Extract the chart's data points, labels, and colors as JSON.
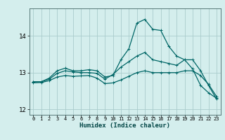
{
  "title": "",
  "xlabel": "Humidex (Indice chaleur)",
  "ylabel": "",
  "bg_color": "#d4eeed",
  "grid_color": "#aacccc",
  "line_color": "#006666",
  "xlim": [
    -0.5,
    23.5
  ],
  "ylim": [
    11.85,
    14.75
  ],
  "yticks": [
    12,
    13,
    14
  ],
  "xticks": [
    0,
    1,
    2,
    3,
    4,
    5,
    6,
    7,
    8,
    9,
    10,
    11,
    12,
    13,
    14,
    15,
    16,
    17,
    18,
    19,
    20,
    21,
    22,
    23
  ],
  "series": [
    {
      "x": [
        0,
        1,
        2,
        3,
        4,
        5,
        6,
        7,
        8,
        9,
        10,
        11,
        12,
        13,
        14,
        15,
        16,
        17,
        18,
        19,
        20,
        21,
        22,
        23
      ],
      "y": [
        12.75,
        12.75,
        12.85,
        13.05,
        13.12,
        13.05,
        13.05,
        13.08,
        13.05,
        12.88,
        12.92,
        13.35,
        13.65,
        14.35,
        14.45,
        14.18,
        14.15,
        13.72,
        13.45,
        13.35,
        13.1,
        12.65,
        12.45,
        12.3
      ]
    },
    {
      "x": [
        0,
        1,
        2,
        3,
        4,
        5,
        6,
        7,
        8,
        9,
        10,
        11,
        12,
        13,
        14,
        15,
        16,
        17,
        18,
        19,
        20,
        21,
        22,
        23
      ],
      "y": [
        12.75,
        12.75,
        12.82,
        12.98,
        13.05,
        13.02,
        13.0,
        13.0,
        12.98,
        12.82,
        12.95,
        13.15,
        13.3,
        13.45,
        13.55,
        13.35,
        13.3,
        13.25,
        13.2,
        13.35,
        13.35,
        13.05,
        12.65,
        12.28
      ]
    },
    {
      "x": [
        0,
        1,
        2,
        3,
        4,
        5,
        6,
        7,
        8,
        9,
        10,
        11,
        12,
        13,
        14,
        15,
        16,
        17,
        18,
        19,
        20,
        21,
        22,
        23
      ],
      "y": [
        12.72,
        12.73,
        12.78,
        12.88,
        12.92,
        12.9,
        12.91,
        12.92,
        12.85,
        12.7,
        12.72,
        12.8,
        12.9,
        13.0,
        13.05,
        13.0,
        13.0,
        13.0,
        13.0,
        13.05,
        13.05,
        12.92,
        12.68,
        12.35
      ]
    }
  ],
  "marker": "+",
  "marker_size": 3,
  "linewidth": 0.9
}
